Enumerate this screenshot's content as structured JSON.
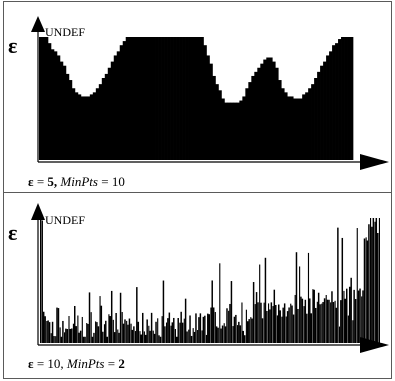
{
  "chart_data": [
    {
      "type": "area",
      "y_axis_symbol": "ε",
      "y_top_label": "UNDEF",
      "caption": {
        "eps_symbol": "ε",
        "eq": " = ",
        "eps_value": "5",
        "sep": ", ",
        "minpts_label": "MinPts",
        "minpts_value": "10"
      },
      "caption_bold": [
        "eps_value"
      ],
      "grid": false,
      "y_range": [
        0,
        1
      ],
      "x_range": [
        0,
        1
      ],
      "profile": [
        [
          0.0,
          1.0
        ],
        [
          0.02,
          1.0
        ],
        [
          0.03,
          0.94
        ],
        [
          0.04,
          0.9
        ],
        [
          0.06,
          0.84
        ],
        [
          0.08,
          0.75
        ],
        [
          0.1,
          0.62
        ],
        [
          0.11,
          0.57
        ],
        [
          0.12,
          0.53
        ],
        [
          0.14,
          0.51
        ],
        [
          0.16,
          0.52
        ],
        [
          0.18,
          0.57
        ],
        [
          0.2,
          0.65
        ],
        [
          0.22,
          0.75
        ],
        [
          0.24,
          0.85
        ],
        [
          0.26,
          0.93
        ],
        [
          0.28,
          1.0
        ],
        [
          0.52,
          1.0
        ],
        [
          0.53,
          0.92
        ],
        [
          0.54,
          0.84
        ],
        [
          0.55,
          0.76
        ],
        [
          0.56,
          0.67
        ],
        [
          0.57,
          0.6
        ],
        [
          0.58,
          0.54
        ],
        [
          0.59,
          0.48
        ],
        [
          0.61,
          0.46
        ],
        [
          0.63,
          0.46
        ],
        [
          0.65,
          0.5
        ],
        [
          0.66,
          0.56
        ],
        [
          0.67,
          0.62
        ],
        [
          0.68,
          0.67
        ],
        [
          0.7,
          0.74
        ],
        [
          0.72,
          0.82
        ],
        [
          0.74,
          0.84
        ],
        [
          0.76,
          0.75
        ],
        [
          0.77,
          0.65
        ],
        [
          0.78,
          0.57
        ],
        [
          0.8,
          0.52
        ],
        [
          0.82,
          0.5
        ],
        [
          0.84,
          0.51
        ],
        [
          0.86,
          0.56
        ],
        [
          0.88,
          0.64
        ],
        [
          0.9,
          0.74
        ],
        [
          0.92,
          0.84
        ],
        [
          0.94,
          0.92
        ],
        [
          0.96,
          0.98
        ],
        [
          0.97,
          1.0
        ],
        [
          1.0,
          1.0
        ]
      ]
    },
    {
      "type": "bar",
      "y_axis_symbol": "ε",
      "y_top_label": "UNDEF",
      "caption": {
        "eps_symbol": "ε",
        "eq": " = ",
        "eps_value": "10",
        "sep": ", ",
        "minpts_label": "MinPts",
        "minpts_value": "2"
      },
      "caption_bold": [
        "minpts_value"
      ],
      "grid": false,
      "y_range": [
        0,
        1
      ],
      "n_bars": 230,
      "trend": {
        "start": 0.13,
        "end": 0.47,
        "curve": 2.3,
        "noise": 0.1,
        "spikes": 0.4
      },
      "leading_spikes": [
        1.0,
        0.98,
        0.25
      ],
      "trailing_spikes": [
        0.82,
        0.95,
        1.0,
        0.93,
        1.0,
        0.97,
        1.0,
        0.88,
        1.0
      ]
    }
  ]
}
